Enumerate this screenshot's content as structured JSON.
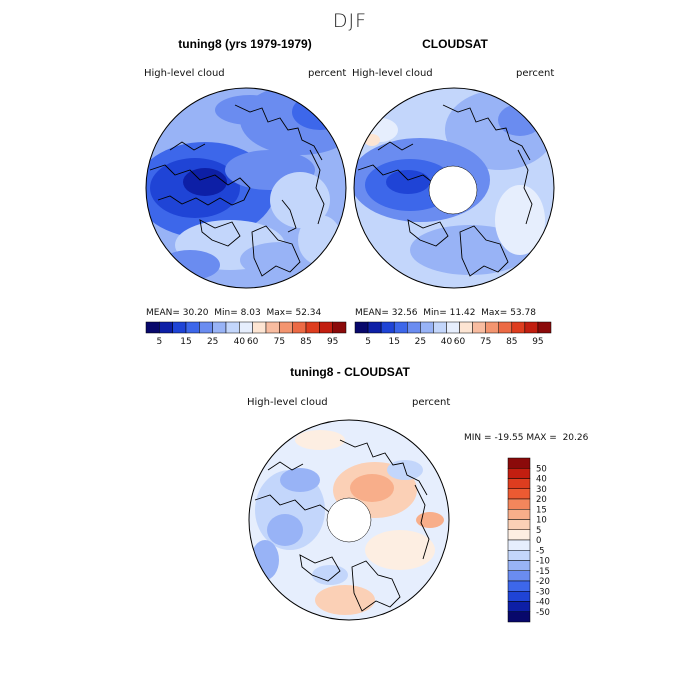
{
  "season_title": "DJF",
  "panels": [
    {
      "title": "tuning8 (yrs 1979-1979)",
      "variable": "High-level cloud",
      "units": "percent",
      "stats": {
        "mean_label": "MEAN=",
        "mean": "30.20",
        "min_label": "Min=",
        "min": "8.03",
        "max_label": "Max=",
        "max": "52.34"
      }
    },
    {
      "title": "CLOUDSAT",
      "variable": "High-level cloud",
      "units": "percent",
      "stats": {
        "mean_label": "MEAN=",
        "mean": "32.56",
        "min_label": "Min=",
        "min": "11.42",
        "max_label": "Max=",
        "max": "53.78"
      }
    },
    {
      "title": "tuning8 - CLOUDSAT",
      "variable": "High-level cloud",
      "units": "percent",
      "stats": {
        "min_label": "MIN =",
        "min": "-19.55",
        "max_label": "MAX =",
        "max": "20.26"
      }
    }
  ],
  "top_colorbar": {
    "colors": [
      "#08086b",
      "#0d1fa6",
      "#1f44d6",
      "#3d67ea",
      "#6a8cf0",
      "#98b3f6",
      "#c3d6fb",
      "#e6eefd",
      "#fde5d3",
      "#f8bca0",
      "#f39570",
      "#ec6a45",
      "#de3d1f",
      "#c21e10",
      "#8b0a0a"
    ],
    "tick_labels": [
      "5",
      "15",
      "25",
      "40",
      "60",
      "75",
      "85",
      "95"
    ]
  },
  "diff_colorbar": {
    "colors": [
      "#8b0a0a",
      "#c21e10",
      "#de3d1f",
      "#ec5a32",
      "#f3865c",
      "#f8ae8a",
      "#fbd0b6",
      "#fdeee2",
      "#e6eefd",
      "#c3d6fb",
      "#98b3f6",
      "#6a8cf0",
      "#3d67ea",
      "#1f44d6",
      "#0d1fa6",
      "#08086b"
    ],
    "tick_labels": [
      "50",
      "40",
      "30",
      "20",
      "15",
      "10",
      "5",
      "0",
      "-5",
      "-10",
      "-15",
      "-20",
      "-30",
      "-40",
      "-50"
    ]
  }
}
